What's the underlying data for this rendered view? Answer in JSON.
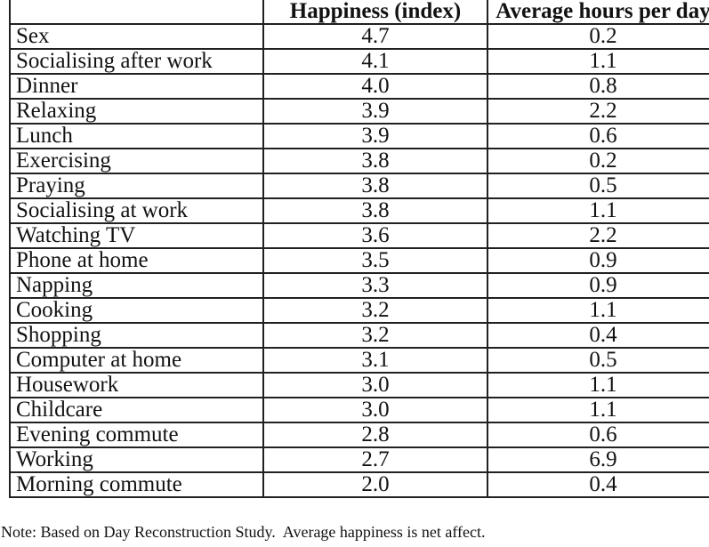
{
  "chart_data": {
    "type": "table",
    "columns": [
      "",
      "Happiness (index)",
      "Average hours per day"
    ],
    "rows": [
      [
        "Sex",
        "4.7",
        "0.2"
      ],
      [
        "Socialising after work",
        "4.1",
        "1.1"
      ],
      [
        "Dinner",
        "4.0",
        "0.8"
      ],
      [
        "Relaxing",
        "3.9",
        "2.2"
      ],
      [
        "Lunch",
        "3.9",
        "0.6"
      ],
      [
        "Exercising",
        "3.8",
        "0.2"
      ],
      [
        "Praying",
        "3.8",
        "0.5"
      ],
      [
        "Socialising at work",
        "3.8",
        "1.1"
      ],
      [
        "Watching TV",
        "3.6",
        "2.2"
      ],
      [
        "Phone at home",
        "3.5",
        "0.9"
      ],
      [
        "Napping",
        "3.3",
        "0.9"
      ],
      [
        "Cooking",
        "3.2",
        "1.1"
      ],
      [
        "Shopping",
        "3.2",
        "0.4"
      ],
      [
        "Computer at home",
        "3.1",
        "0.5"
      ],
      [
        "Housework",
        "3.0",
        "1.1"
      ],
      [
        "Childcare",
        "3.0",
        "1.1"
      ],
      [
        "Evening commute",
        "2.8",
        "0.6"
      ],
      [
        "Working",
        "2.7",
        "6.9"
      ],
      [
        "Morning commute",
        "2.0",
        "0.4"
      ]
    ],
    "title": "",
    "legend": "none",
    "grid": "full table borders"
  },
  "note": "Note: Based on Day Reconstruction Study.  Average happiness is net affect.",
  "colors": {
    "background": "#ffffff",
    "text": "#121212",
    "border": "#212121"
  }
}
